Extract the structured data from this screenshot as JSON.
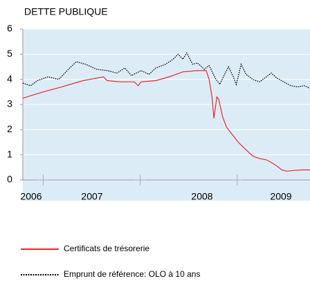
{
  "chart_data": {
    "type": "line",
    "title": "DETTE PUBLIQUE",
    "xlim": [
      2006.79,
      2009.75
    ],
    "xticks": [
      2007,
      2008,
      2009
    ],
    "x_labels": [
      "2006",
      "2007",
      "2008",
      "2009"
    ],
    "ylim": [
      0,
      6
    ],
    "yticks": [
      0,
      1,
      2,
      3,
      4,
      5,
      6
    ],
    "grid": true,
    "series": [
      {
        "name": "Certificats de trésorerie",
        "color": "#e8262b",
        "dash": "solid",
        "x": [
          2006.79,
          2006.87,
          2007.0,
          2007.19,
          2007.41,
          2007.55,
          2007.62,
          2007.66,
          2007.8,
          2007.94,
          2007.98,
          2008.01,
          2008.16,
          2008.3,
          2008.44,
          2008.59,
          2008.68,
          2008.71,
          2008.74,
          2008.76,
          2008.79,
          2008.81,
          2008.85,
          2008.89,
          2008.94,
          2009.01,
          2009.09,
          2009.16,
          2009.23,
          2009.3,
          2009.35,
          2009.41,
          2009.46,
          2009.51,
          2009.59,
          2009.66,
          2009.75
        ],
        "values": [
          3.25,
          3.35,
          3.5,
          3.7,
          3.95,
          4.05,
          4.1,
          3.95,
          3.9,
          3.9,
          3.75,
          3.9,
          3.95,
          4.1,
          4.3,
          4.35,
          4.35,
          4.0,
          3.3,
          2.45,
          3.3,
          3.2,
          2.5,
          2.1,
          1.85,
          1.5,
          1.2,
          0.95,
          0.85,
          0.8,
          0.7,
          0.55,
          0.4,
          0.35,
          0.38,
          0.4,
          0.4
        ]
      },
      {
        "name": "Emprunt de référence: OLO à 10 ans",
        "color": "#000000",
        "dash": "dotted",
        "x": [
          2006.79,
          2006.87,
          2006.94,
          2007.05,
          2007.16,
          2007.26,
          2007.34,
          2007.44,
          2007.55,
          2007.66,
          2007.76,
          2007.84,
          2007.91,
          2008.01,
          2008.09,
          2008.16,
          2008.26,
          2008.34,
          2008.39,
          2008.44,
          2008.48,
          2008.54,
          2008.59,
          2008.66,
          2008.71,
          2008.78,
          2008.82,
          2008.87,
          2008.91,
          2008.96,
          2008.99,
          2009.04,
          2009.09,
          2009.16,
          2009.23,
          2009.3,
          2009.35,
          2009.41,
          2009.48,
          2009.55,
          2009.62,
          2009.69,
          2009.75
        ],
        "values": [
          3.85,
          3.75,
          3.95,
          4.1,
          4.0,
          4.4,
          4.7,
          4.6,
          4.4,
          4.35,
          4.25,
          4.45,
          4.15,
          4.35,
          4.2,
          4.45,
          4.6,
          4.8,
          5.0,
          4.8,
          5.05,
          4.6,
          4.65,
          4.4,
          4.55,
          4.0,
          3.8,
          4.2,
          4.5,
          4.1,
          3.8,
          4.6,
          4.2,
          4.0,
          3.9,
          4.1,
          4.25,
          4.05,
          3.9,
          3.75,
          3.7,
          3.75,
          3.65
        ]
      }
    ]
  }
}
